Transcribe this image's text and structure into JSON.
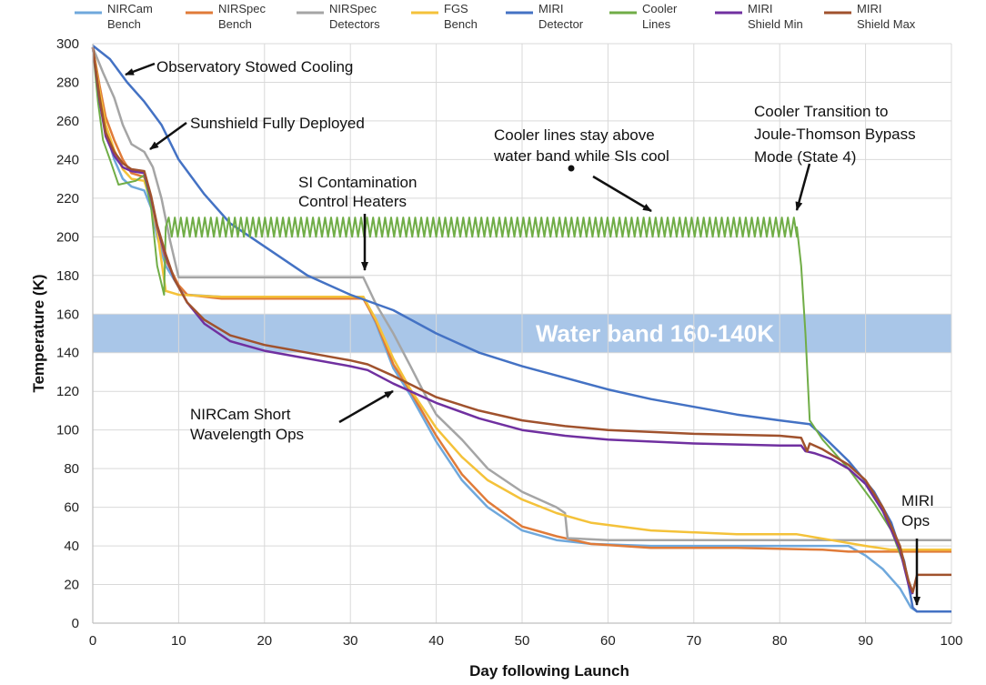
{
  "chart_data": {
    "type": "line",
    "title": "",
    "xlabel": "Day following Launch",
    "ylabel": "Temperature (K)",
    "xlim": [
      0,
      100
    ],
    "ylim": [
      0,
      300
    ],
    "xticks": [
      0,
      10,
      20,
      30,
      40,
      50,
      60,
      70,
      80,
      90,
      100
    ],
    "yticks": [
      0,
      20,
      40,
      60,
      80,
      100,
      120,
      140,
      160,
      180,
      200,
      220,
      240,
      260,
      280,
      300
    ],
    "grid": true,
    "legend": "top",
    "band": {
      "y_from": 140,
      "y_to": 160,
      "label": "Water band 160-140K",
      "color": "#a9c6e8"
    },
    "series": [
      {
        "name": "NIRCam Bench",
        "legend": [
          "NIRCam",
          "Bench"
        ],
        "color": "#6fa8dc",
        "points": [
          [
            0,
            298
          ],
          [
            0.8,
            272
          ],
          [
            1.5,
            255
          ],
          [
            2.5,
            240
          ],
          [
            3.5,
            230
          ],
          [
            4.5,
            226
          ],
          [
            6,
            224
          ],
          [
            6.8,
            215
          ],
          [
            7.5,
            200
          ],
          [
            8.5,
            185
          ],
          [
            10,
            174
          ],
          [
            11,
            170
          ],
          [
            15,
            169
          ],
          [
            20,
            169
          ],
          [
            25,
            169
          ],
          [
            30,
            169
          ],
          [
            31.5,
            169
          ],
          [
            33,
            155
          ],
          [
            35,
            132
          ],
          [
            37,
            118
          ],
          [
            40,
            94
          ],
          [
            43,
            74
          ],
          [
            46,
            60
          ],
          [
            50,
            48
          ],
          [
            54,
            43
          ],
          [
            58,
            41
          ],
          [
            65,
            40
          ],
          [
            75,
            40
          ],
          [
            85,
            40
          ],
          [
            88,
            40
          ],
          [
            90,
            35
          ],
          [
            92,
            28
          ],
          [
            94,
            18
          ],
          [
            95.3,
            8
          ],
          [
            96,
            6
          ],
          [
            100,
            6
          ]
        ]
      },
      {
        "name": "NIRSpec Bench",
        "legend": [
          "NIRSpec",
          "Bench"
        ],
        "color": "#e07b39",
        "points": [
          [
            0,
            298
          ],
          [
            0.8,
            278
          ],
          [
            1.5,
            262
          ],
          [
            2.5,
            250
          ],
          [
            3.5,
            240
          ],
          [
            4.5,
            233
          ],
          [
            6,
            231
          ],
          [
            6.8,
            220
          ],
          [
            7.5,
            205
          ],
          [
            8.5,
            188
          ],
          [
            10,
            175
          ],
          [
            11,
            170
          ],
          [
            15,
            168
          ],
          [
            20,
            168
          ],
          [
            25,
            168
          ],
          [
            30,
            168
          ],
          [
            31.5,
            168
          ],
          [
            33,
            156
          ],
          [
            35,
            134
          ],
          [
            37,
            120
          ],
          [
            40,
            97
          ],
          [
            43,
            77
          ],
          [
            46,
            63
          ],
          [
            50,
            50
          ],
          [
            54,
            45
          ],
          [
            58,
            41
          ],
          [
            65,
            39
          ],
          [
            75,
            39
          ],
          [
            85,
            38
          ],
          [
            88,
            37
          ],
          [
            92,
            37
          ],
          [
            95,
            37
          ],
          [
            100,
            37
          ]
        ]
      },
      {
        "name": "NIRSpec Detectors",
        "legend": [
          "NIRSpec",
          "Detectors"
        ],
        "color": "#a5a5a5",
        "points": [
          [
            0,
            298
          ],
          [
            1.2,
            285
          ],
          [
            2.5,
            272
          ],
          [
            3.5,
            258
          ],
          [
            4.5,
            248
          ],
          [
            6,
            244
          ],
          [
            7,
            236
          ],
          [
            8,
            220
          ],
          [
            9,
            198
          ],
          [
            10,
            179
          ],
          [
            15,
            179
          ],
          [
            20,
            179
          ],
          [
            25,
            179
          ],
          [
            30,
            179
          ],
          [
            31.5,
            179
          ],
          [
            33,
            165
          ],
          [
            35,
            150
          ],
          [
            37,
            133
          ],
          [
            38.5,
            120
          ],
          [
            40,
            108
          ],
          [
            43,
            95
          ],
          [
            46,
            80
          ],
          [
            50,
            68
          ],
          [
            54,
            60
          ],
          [
            55,
            57
          ],
          [
            55.3,
            44
          ],
          [
            60,
            43
          ],
          [
            70,
            43
          ],
          [
            80,
            43
          ],
          [
            90,
            43
          ],
          [
            100,
            43
          ]
        ]
      },
      {
        "name": "FGS Bench",
        "legend": [
          "FGS",
          "Bench"
        ],
        "color": "#f4c23a",
        "points": [
          [
            0,
            298
          ],
          [
            0.8,
            275
          ],
          [
            1.5,
            258
          ],
          [
            2.5,
            245
          ],
          [
            3.5,
            235
          ],
          [
            4.5,
            230
          ],
          [
            6,
            229
          ],
          [
            6.8,
            218
          ],
          [
            7.5,
            203
          ],
          [
            8.5,
            172
          ],
          [
            10,
            170
          ],
          [
            15,
            169
          ],
          [
            20,
            169
          ],
          [
            25,
            169
          ],
          [
            30,
            169
          ],
          [
            31.5,
            169
          ],
          [
            33,
            157
          ],
          [
            35,
            137
          ],
          [
            37,
            121
          ],
          [
            40,
            101
          ],
          [
            43,
            86
          ],
          [
            46,
            74
          ],
          [
            50,
            64
          ],
          [
            54,
            57
          ],
          [
            58,
            52
          ],
          [
            65,
            48
          ],
          [
            75,
            46
          ],
          [
            82,
            46
          ],
          [
            86,
            43
          ],
          [
            90,
            40
          ],
          [
            93,
            38
          ],
          [
            100,
            38
          ]
        ]
      },
      {
        "name": "MIRI Detector",
        "legend": [
          "MIRI",
          "Detector"
        ],
        "color": "#4472c4",
        "points": [
          [
            0,
            299
          ],
          [
            2,
            292
          ],
          [
            4,
            280
          ],
          [
            6,
            270
          ],
          [
            8,
            258
          ],
          [
            10,
            240
          ],
          [
            13,
            222
          ],
          [
            16,
            207
          ],
          [
            20,
            195
          ],
          [
            25,
            180
          ],
          [
            30,
            170
          ],
          [
            35,
            162
          ],
          [
            40,
            150
          ],
          [
            45,
            140
          ],
          [
            50,
            133
          ],
          [
            55,
            127
          ],
          [
            60,
            121
          ],
          [
            65,
            116
          ],
          [
            70,
            112
          ],
          [
            75,
            108
          ],
          [
            80,
            105
          ],
          [
            83.5,
            103
          ],
          [
            85,
            97
          ],
          [
            88,
            84
          ],
          [
            91,
            68
          ],
          [
            93,
            52
          ],
          [
            94.5,
            32
          ],
          [
            95.5,
            8
          ],
          [
            96,
            6
          ],
          [
            100,
            6
          ]
        ]
      },
      {
        "name": "Cooler Lines",
        "legend": [
          "Cooler",
          "Lines"
        ],
        "color": "#70ad47",
        "points": [
          [
            0,
            298
          ],
          [
            0.6,
            270
          ],
          [
            1.2,
            250
          ],
          [
            2,
            240
          ],
          [
            3,
            227
          ],
          [
            4,
            228
          ],
          [
            5,
            229
          ],
          [
            6,
            232
          ],
          [
            6.8,
            215
          ],
          [
            7.5,
            185
          ],
          [
            8.3,
            170
          ],
          [
            8.5,
            205
          ],
          [
            82,
            205
          ],
          [
            82.5,
            185
          ],
          [
            83,
            150
          ],
          [
            83.5,
            105
          ],
          [
            85,
            95
          ],
          [
            88,
            80
          ],
          [
            91,
            62
          ],
          [
            93,
            48
          ],
          [
            94.5,
            30
          ],
          [
            95,
            22
          ]
        ]
      },
      {
        "name": "MIRI Shield Min",
        "legend": [
          "MIRI",
          "Shield Min"
        ],
        "color": "#7030a0",
        "points": [
          [
            0,
            298
          ],
          [
            0.8,
            270
          ],
          [
            1.5,
            252
          ],
          [
            2.5,
            242
          ],
          [
            3.5,
            236
          ],
          [
            4.5,
            234
          ],
          [
            6,
            233
          ],
          [
            6.8,
            220
          ],
          [
            7.5,
            205
          ],
          [
            8.5,
            190
          ],
          [
            9.5,
            178
          ],
          [
            11,
            166
          ],
          [
            13,
            155
          ],
          [
            16,
            146
          ],
          [
            20,
            141
          ],
          [
            25,
            137
          ],
          [
            30,
            133
          ],
          [
            32,
            131
          ],
          [
            35,
            124
          ],
          [
            40,
            114
          ],
          [
            45,
            106
          ],
          [
            50,
            100
          ],
          [
            55,
            97
          ],
          [
            60,
            95
          ],
          [
            70,
            93
          ],
          [
            80,
            92
          ],
          [
            82.5,
            92
          ],
          [
            83,
            89
          ],
          [
            84,
            88
          ],
          [
            86,
            85
          ],
          [
            88,
            80
          ],
          [
            90,
            72
          ],
          [
            92,
            58
          ],
          [
            94,
            38
          ],
          [
            95,
            20
          ],
          [
            95.5,
            15
          ]
        ]
      },
      {
        "name": "MIRI Shield Max",
        "legend": [
          "MIRI",
          "Shield Max"
        ],
        "color": "#a0522d",
        "points": [
          [
            0,
            298
          ],
          [
            0.8,
            272
          ],
          [
            1.5,
            254
          ],
          [
            2.5,
            244
          ],
          [
            3.5,
            238
          ],
          [
            4.5,
            235
          ],
          [
            6,
            234
          ],
          [
            6.8,
            221
          ],
          [
            7.5,
            206
          ],
          [
            8.5,
            191
          ],
          [
            9.5,
            178
          ],
          [
            11,
            166
          ],
          [
            13,
            157
          ],
          [
            16,
            149
          ],
          [
            20,
            144
          ],
          [
            25,
            140
          ],
          [
            30,
            136
          ],
          [
            32,
            134
          ],
          [
            35,
            128
          ],
          [
            40,
            117
          ],
          [
            45,
            110
          ],
          [
            50,
            105
          ],
          [
            55,
            102
          ],
          [
            60,
            100
          ],
          [
            70,
            98
          ],
          [
            80,
            97
          ],
          [
            82.5,
            96
          ],
          [
            83.2,
            89
          ],
          [
            83.5,
            93
          ],
          [
            85,
            90
          ],
          [
            88,
            82
          ],
          [
            90,
            74
          ],
          [
            92,
            60
          ],
          [
            94,
            40
          ],
          [
            95,
            22
          ],
          [
            95.5,
            16
          ],
          [
            96,
            25
          ],
          [
            100,
            25
          ]
        ]
      }
    ],
    "annotations": [
      {
        "lines": [
          "Observatory Stowed Cooling"
        ],
        "arrow": true
      },
      {
        "lines": [
          "Sunshield Fully Deployed"
        ],
        "arrow": true
      },
      {
        "lines": [
          "SI Contamination",
          "Control Heaters"
        ],
        "arrow": true
      },
      {
        "lines": [
          "Cooler lines stay above",
          "water band while SIs cool"
        ],
        "arrow": true
      },
      {
        "lines": [
          "Cooler Transition to",
          "Joule-Thomson Bypass",
          "Mode (State 4)"
        ],
        "arrow": true
      },
      {
        "lines": [
          "NIRCam Short",
          "Wavelength Ops"
        ],
        "arrow": true
      },
      {
        "lines": [
          "MIRI",
          "Ops"
        ],
        "arrow": true
      }
    ]
  }
}
